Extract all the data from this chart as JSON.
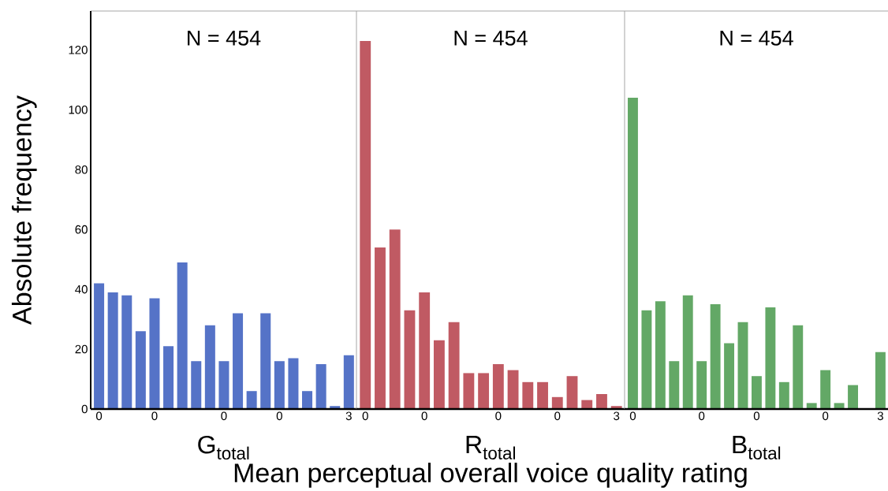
{
  "chart_data": [
    {
      "type": "bar",
      "title": "N = 454",
      "xlabel": "G$_{total}$",
      "ylabel": "Absolute frequency",
      "color": "#5573c7",
      "categories": [
        "0",
        null,
        null,
        null,
        "0",
        null,
        null,
        null,
        null,
        "0",
        null,
        null,
        null,
        "0",
        null,
        null,
        null,
        null,
        "3"
      ],
      "values": [
        42,
        39,
        38,
        26,
        37,
        21,
        49,
        16,
        28,
        16,
        32,
        6,
        32,
        16,
        17,
        6,
        15,
        1,
        18
      ],
      "ylim": [
        0,
        133
      ],
      "yticks": [
        0,
        20,
        40,
        60,
        80,
        100,
        120
      ]
    },
    {
      "type": "bar",
      "title": "N = 454",
      "xlabel": "R$_{total}$",
      "color": "#c05a63",
      "annotations": [
        "Mean perceptual overall voice quality rating"
      ],
      "categories": [
        "0",
        null,
        null,
        null,
        "0",
        null,
        null,
        null,
        null,
        "0",
        null,
        null,
        null,
        "0",
        null,
        null,
        null,
        "3"
      ],
      "values": [
        123,
        54,
        60,
        33,
        39,
        23,
        29,
        12,
        12,
        15,
        13,
        9,
        9,
        4,
        11,
        3,
        5,
        1
      ],
      "ylim": [
        0,
        133
      ],
      "yticks": [
        0,
        20,
        40,
        60,
        80,
        100,
        120
      ],
      "tick_labels": "x"
    },
    {
      "type": "bar",
      "title": "N = 454",
      "xlabel": "B$_{total}$",
      "color": "#63a866",
      "categories": [
        "0",
        null,
        null,
        null,
        null,
        "0",
        null,
        null,
        null,
        "0",
        null,
        null,
        null,
        null,
        "0",
        null,
        null,
        null,
        "3"
      ],
      "values": [
        104,
        33,
        36,
        16,
        38,
        16,
        35,
        22,
        29,
        11,
        34,
        9,
        28,
        2,
        13,
        2,
        8,
        0,
        19
      ],
      "ylim": [
        0,
        133
      ],
      "yticks": [
        0,
        20,
        40,
        60,
        80,
        100,
        120
      ],
      "tick_labels": "x"
    }
  ]
}
